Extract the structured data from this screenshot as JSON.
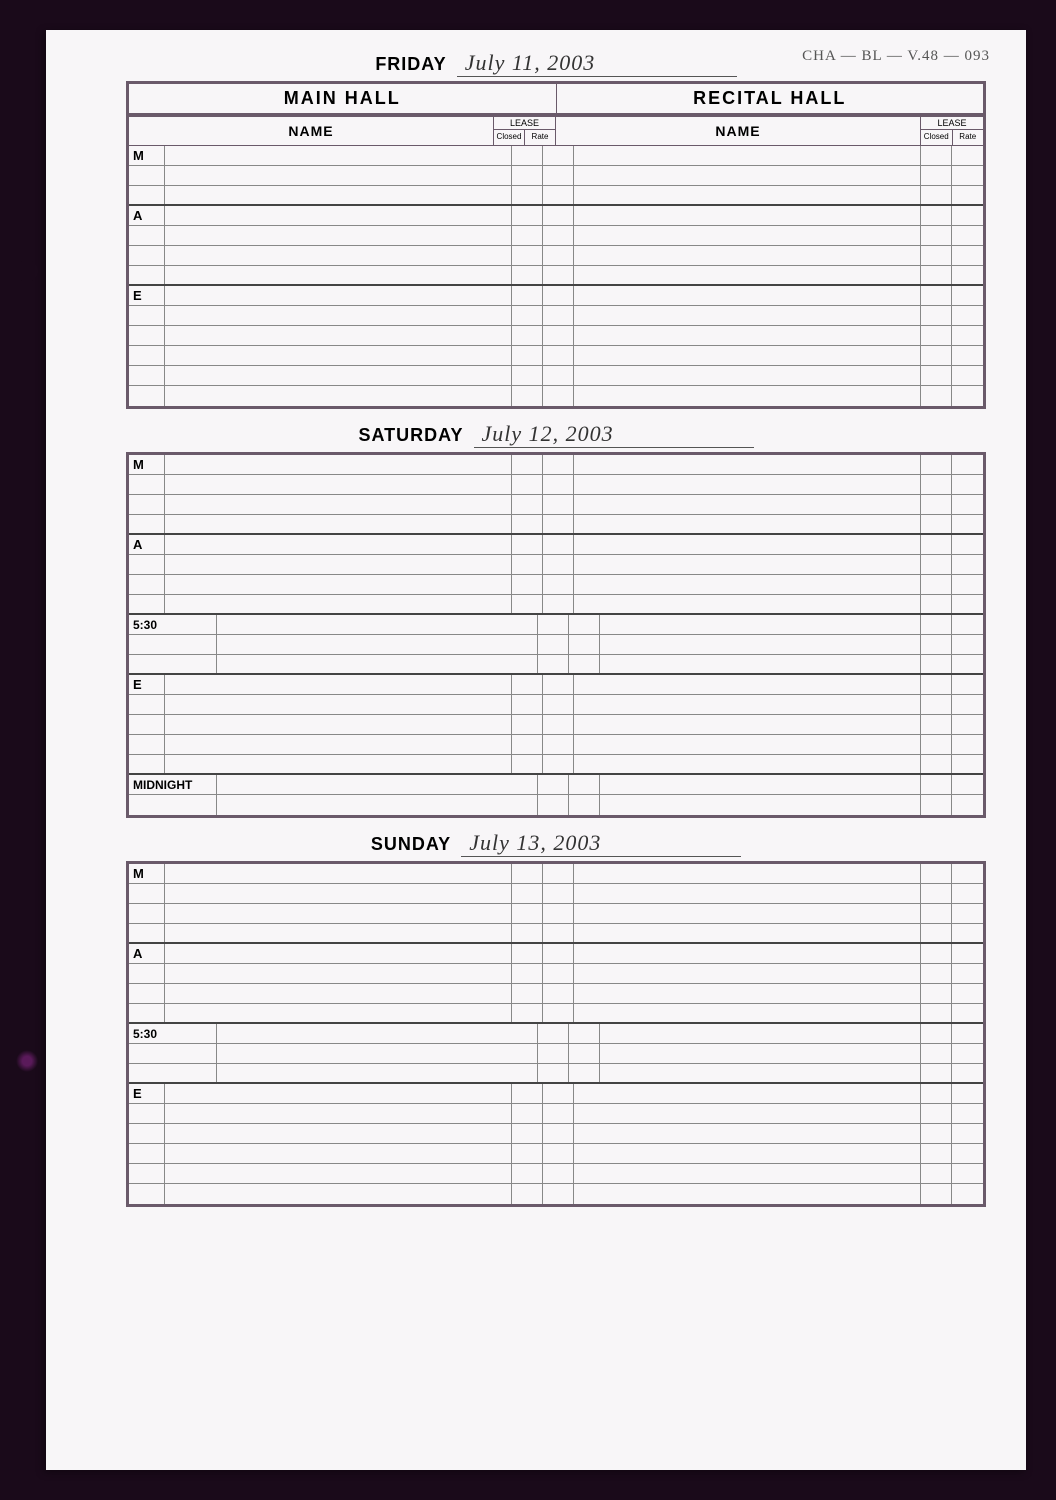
{
  "corner_label": "CHA — BL — V.48 — 093",
  "halls": {
    "main": "MAIN HALL",
    "recital": "RECITAL HALL"
  },
  "column_labels": {
    "name": "NAME",
    "lease": "LEASE",
    "closed": "Closed",
    "rate": "Rate"
  },
  "colors": {
    "page_bg": "#f8f6f8",
    "outer_bg": "#1a0a1a",
    "border": "#6a5a6a",
    "row_line": "#888888",
    "section_line": "#444444",
    "text": "#222222",
    "handwriting": "#333333"
  },
  "typography": {
    "heading_fontsize": 18,
    "handwriting_fontsize": 22,
    "row_label_fontsize": 13,
    "small_label_fontsize": 9
  },
  "days": [
    {
      "day_name": "FRIDAY",
      "date_written": "July 11, 2003",
      "show_hall_header": true,
      "show_col_header": true,
      "sections": [
        {
          "label": "M",
          "rows": 3
        },
        {
          "label": "A",
          "rows": 4
        },
        {
          "label": "E",
          "rows": 6
        }
      ]
    },
    {
      "day_name": "SATURDAY",
      "date_written": "July 12, 2003",
      "show_hall_header": false,
      "show_col_header": false,
      "sections": [
        {
          "label": "M",
          "rows": 4
        },
        {
          "label": "A",
          "rows": 4
        },
        {
          "label": "5:30",
          "rows": 3,
          "wide": true
        },
        {
          "label": "E",
          "rows": 5
        },
        {
          "label": "MIDNIGHT",
          "rows": 2,
          "wide": true
        }
      ]
    },
    {
      "day_name": "SUNDAY",
      "date_written": "July 13, 2003",
      "show_hall_header": false,
      "show_col_header": false,
      "sections": [
        {
          "label": "M",
          "rows": 4
        },
        {
          "label": "A",
          "rows": 4
        },
        {
          "label": "5:30",
          "rows": 3,
          "wide": true
        },
        {
          "label": "E",
          "rows": 6
        }
      ]
    }
  ]
}
